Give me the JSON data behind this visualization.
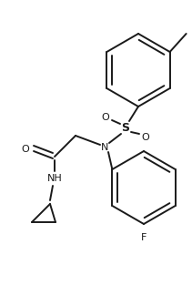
{
  "bg_color": "#ffffff",
  "line_color": "#1a1a1a",
  "line_width": 1.4,
  "fig_width": 2.11,
  "fig_height": 3.24,
  "dpi": 100,
  "xlim": [
    0,
    211
  ],
  "ylim": [
    0,
    324
  ]
}
